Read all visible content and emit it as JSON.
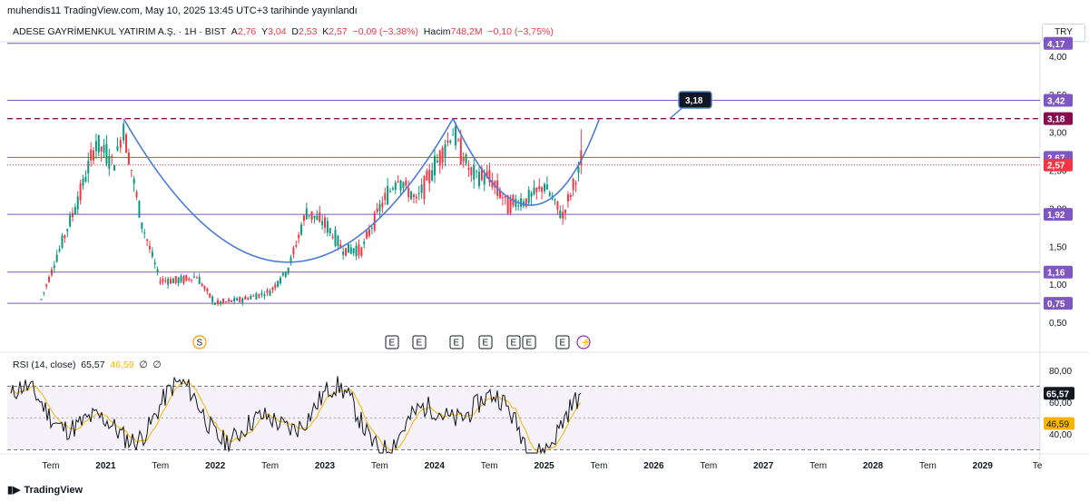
{
  "header": {
    "publisher": "muhendis11 TradingView.com, May 10, 2025 13:45 UTC+3 tarihinde yayınlandı"
  },
  "symbol": {
    "name": "ADESE GAYRİMENKUL YATIRIM A.Ş. · 1H · BIST",
    "open_label": "A",
    "open": "2,76",
    "high_label": "Y",
    "high": "3,04",
    "low_label": "D",
    "low": "2,53",
    "close_label": "K",
    "close": "2,57",
    "change": "−0,09 (−3,38%)",
    "volume_label": "Hacim",
    "volume": "748,2M",
    "volume_change": "−0,10 (−3,75%)"
  },
  "currency": "TRY",
  "rsi": {
    "title": "RSI (14, close)",
    "value": "65,57",
    "ma": "46,59",
    "extra1": "∅",
    "extra2": "∅"
  },
  "footer": {
    "brand": "TradingView"
  },
  "colors": {
    "up": "#089981",
    "down": "#f23645",
    "level": "#7e57c2",
    "cup": "#4a7bd4",
    "rsi_line": "#131722",
    "rsi_ma": "#f7b500"
  },
  "chart_data": [
    {
      "type": "candlestick",
      "ylim": [
        0.4,
        4.3
      ],
      "y_ticks": [
        "4,00",
        "3,50",
        "3,00",
        "2,50",
        "2,00",
        "1,50",
        "1,00",
        "0,50"
      ],
      "x_ticks": [
        "Tem",
        "2021",
        "Tem",
        "2022",
        "Tem",
        "2023",
        "Tem",
        "2024",
        "Tem",
        "2025",
        "Tem",
        "2026",
        "Tem",
        "2027",
        "Tem",
        "2028",
        "Tem",
        "2029",
        "Te"
      ],
      "levels": [
        {
          "label": "4,17",
          "value": 4.17
        },
        {
          "label": "3,42",
          "value": 3.42
        },
        {
          "label": "2,67",
          "value": 2.67
        },
        {
          "label": "1,92",
          "value": 1.92
        },
        {
          "label": "1,16",
          "value": 1.16
        },
        {
          "label": "0,75",
          "value": 0.75
        }
      ],
      "target": {
        "label": "3,18",
        "value": 3.18
      },
      "last_price": {
        "label": "2,57",
        "value": 2.57
      },
      "annotation": "3,18",
      "events": [
        "S",
        "E",
        "E",
        "E",
        "E",
        "E",
        "E",
        "E",
        "⚡"
      ],
      "series": [
        {
          "date": "2020-06",
          "value": 0.8
        },
        {
          "date": "2020-08",
          "value": 1.45
        },
        {
          "date": "2020-10",
          "value": 2.1
        },
        {
          "date": "2020-12",
          "value": 2.85
        },
        {
          "date": "2021-02",
          "value": 2.6
        },
        {
          "date": "2021-03",
          "value": 3.05
        },
        {
          "date": "2021-05",
          "value": 1.8
        },
        {
          "date": "2021-07",
          "value": 1.05
        },
        {
          "date": "2021-09",
          "value": 1.05
        },
        {
          "date": "2021-11",
          "value": 1.1
        },
        {
          "date": "2022-01",
          "value": 0.75
        },
        {
          "date": "2022-04",
          "value": 0.8
        },
        {
          "date": "2022-07",
          "value": 0.9
        },
        {
          "date": "2022-09",
          "value": 1.2
        },
        {
          "date": "2022-11",
          "value": 1.95
        },
        {
          "date": "2023-01",
          "value": 1.8
        },
        {
          "date": "2023-03",
          "value": 1.45
        },
        {
          "date": "2023-05",
          "value": 1.45
        },
        {
          "date": "2023-07",
          "value": 2.0
        },
        {
          "date": "2023-09",
          "value": 2.4
        },
        {
          "date": "2023-11",
          "value": 2.1
        },
        {
          "date": "2024-01",
          "value": 2.55
        },
        {
          "date": "2024-03",
          "value": 3.0
        },
        {
          "date": "2024-05",
          "value": 2.45
        },
        {
          "date": "2024-07",
          "value": 2.4
        },
        {
          "date": "2024-09",
          "value": 2.05
        },
        {
          "date": "2024-11",
          "value": 2.1
        },
        {
          "date": "2025-01",
          "value": 2.3
        },
        {
          "date": "2025-03",
          "value": 1.9
        },
        {
          "date": "2025-05",
          "value": 2.57
        }
      ]
    },
    {
      "type": "line",
      "title": "RSI (14, close)",
      "ylim": [
        25,
        90
      ],
      "y_ticks": [
        "80,00",
        "60,00",
        "40,00"
      ],
      "bands": {
        "upper": 70,
        "lower": 30
      },
      "last_value": "65,57",
      "ma_value": "46,59"
    }
  ]
}
